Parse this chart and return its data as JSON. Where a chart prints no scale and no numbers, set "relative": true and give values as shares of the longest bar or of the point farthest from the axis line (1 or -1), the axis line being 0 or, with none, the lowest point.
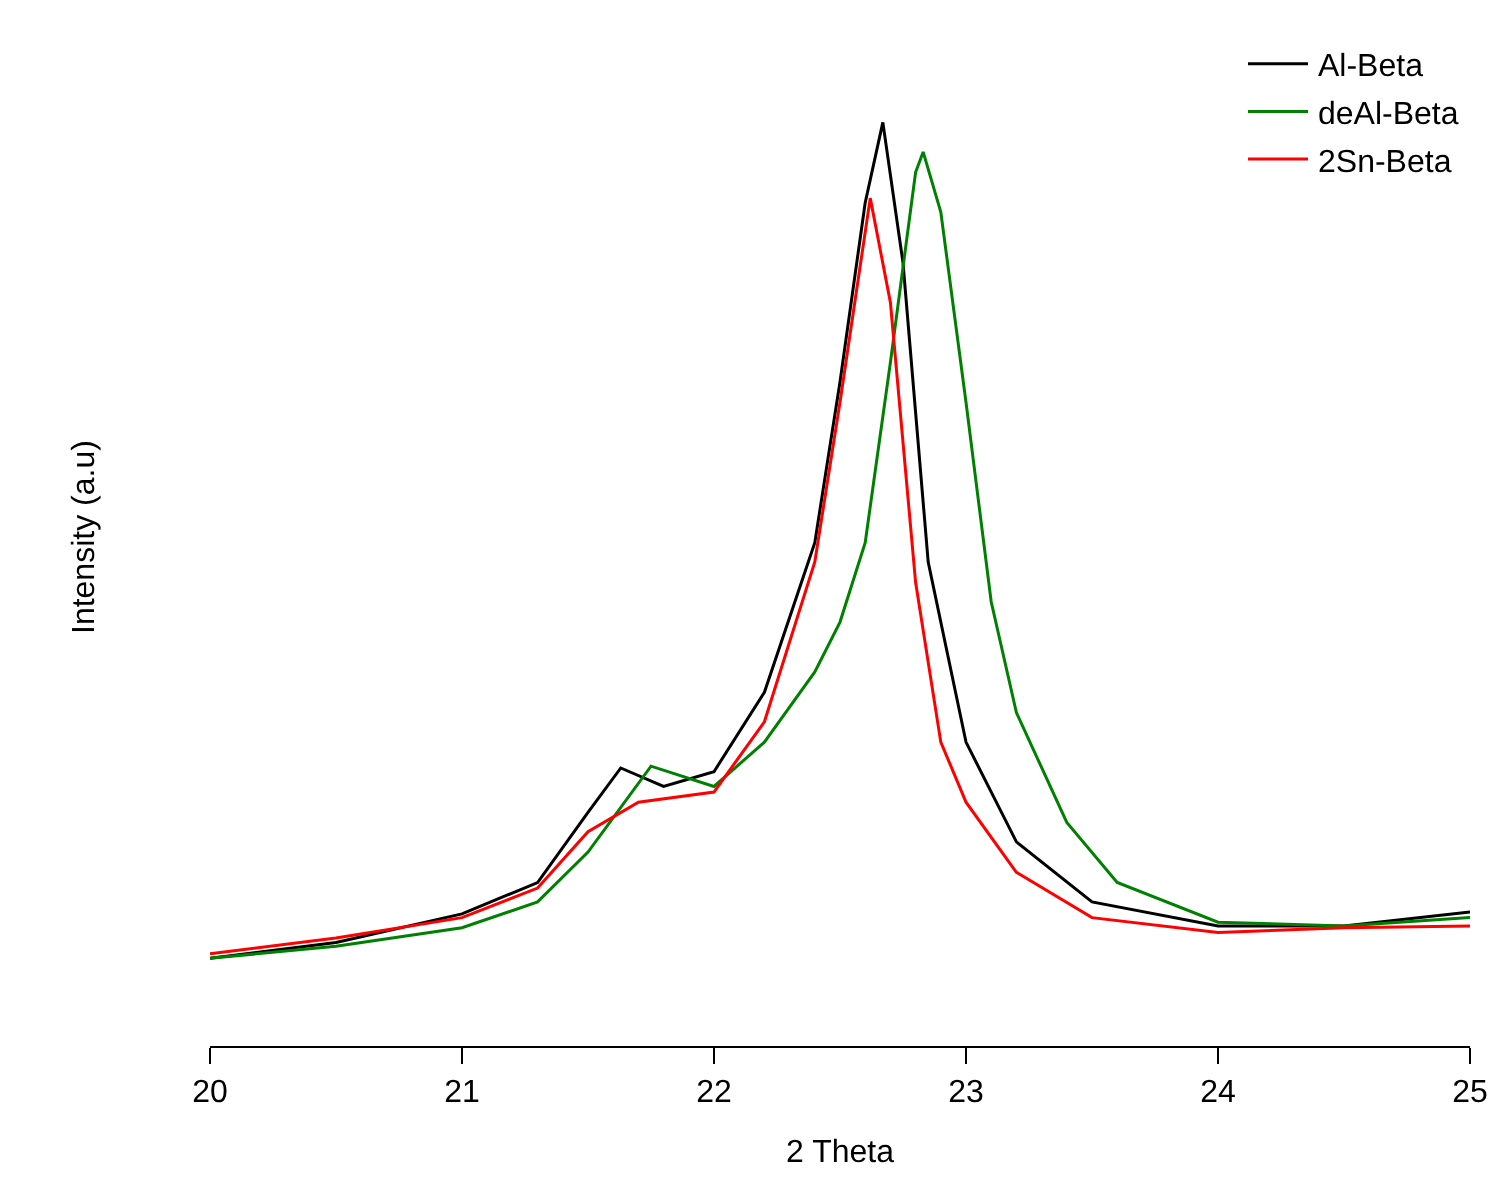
{
  "chart_data": {
    "type": "line",
    "xlabel": "2 Theta",
    "ylabel": "Intensity (a.u)",
    "relative": true,
    "xlim": [
      20,
      25
    ],
    "xticks": [
      20,
      21,
      22,
      23,
      24,
      25
    ],
    "grid": false,
    "legend": "top right",
    "marker": "none",
    "line_style": "solid",
    "series": [
      {
        "name": "Al-Beta",
        "color": "#000000",
        "x": [
          20,
          20.5,
          21,
          21.3,
          21.5,
          21.63,
          21.8,
          22,
          22.2,
          22.4,
          22.5,
          22.6,
          22.67,
          22.75,
          22.85,
          23,
          23.2,
          23.5,
          24,
          24.5,
          25
        ],
        "values": [
          0.095,
          0.112,
          0.143,
          0.177,
          0.253,
          0.301,
          0.281,
          0.297,
          0.383,
          0.545,
          0.719,
          0.913,
          1.0,
          0.848,
          0.524,
          0.329,
          0.221,
          0.156,
          0.13,
          0.13,
          0.145
        ]
      },
      {
        "name": "deAl-Beta",
        "color": "#008000",
        "x": [
          20,
          20.5,
          21,
          21.3,
          21.5,
          21.75,
          22,
          22.2,
          22.4,
          22.5,
          22.6,
          22.7,
          22.8,
          22.83,
          22.9,
          23,
          23.1,
          23.2,
          23.4,
          23.6,
          24,
          24.5,
          25
        ],
        "values": [
          0.095,
          0.108,
          0.128,
          0.156,
          0.21,
          0.303,
          0.281,
          0.329,
          0.405,
          0.459,
          0.545,
          0.74,
          0.946,
          0.968,
          0.903,
          0.697,
          0.481,
          0.361,
          0.242,
          0.177,
          0.134,
          0.13,
          0.139
        ]
      },
      {
        "name": "2Sn-Beta",
        "color": "#ff0000",
        "x": [
          20,
          20.5,
          21,
          21.3,
          21.5,
          21.7,
          22,
          22.2,
          22.4,
          22.5,
          22.62,
          22.7,
          22.8,
          22.9,
          23,
          23.2,
          23.5,
          24,
          24.5,
          25
        ],
        "values": [
          0.1,
          0.117,
          0.139,
          0.171,
          0.232,
          0.264,
          0.275,
          0.351,
          0.524,
          0.697,
          0.918,
          0.805,
          0.502,
          0.329,
          0.264,
          0.188,
          0.139,
          0.123,
          0.128,
          0.13
        ]
      }
    ]
  }
}
